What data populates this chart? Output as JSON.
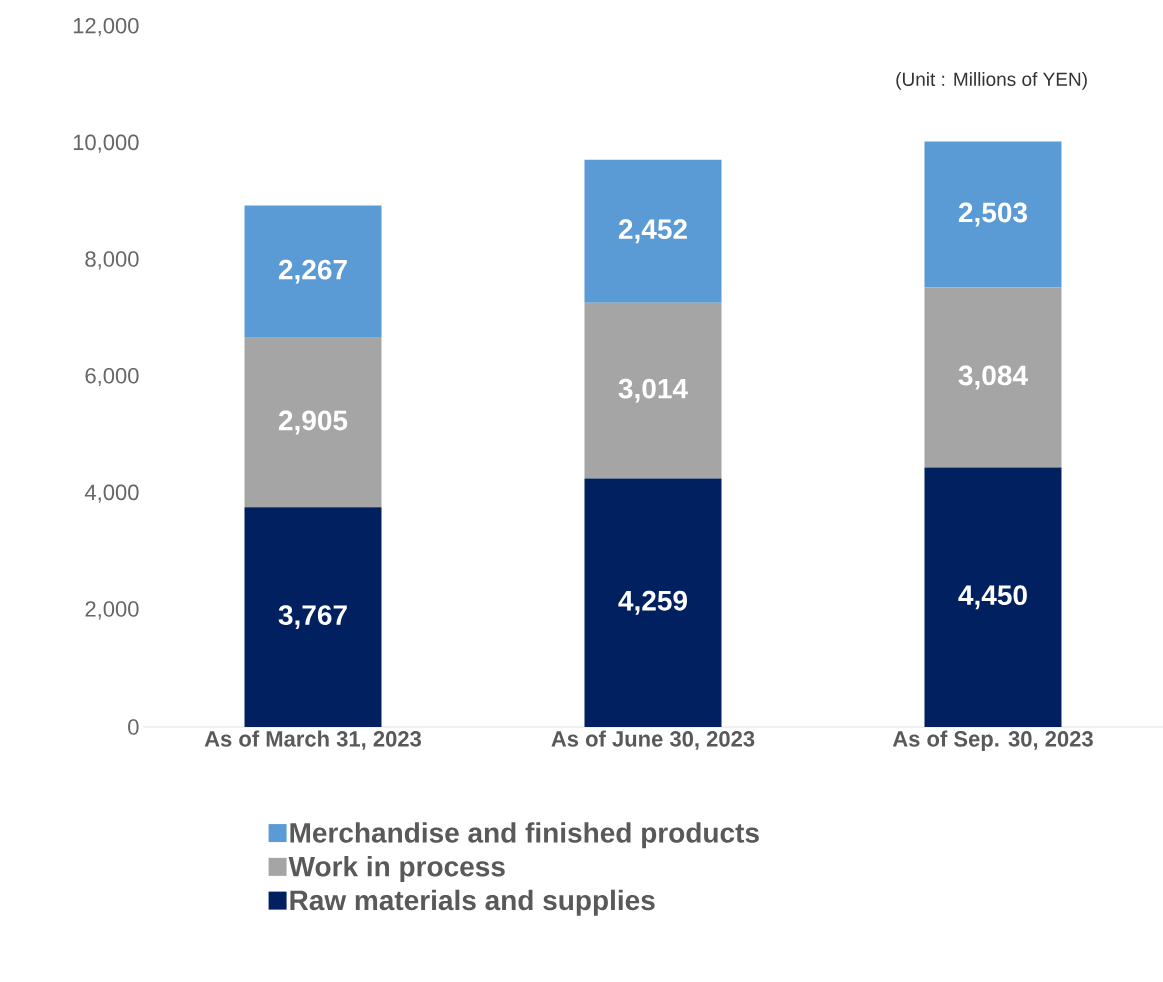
{
  "chart_data": {
    "type": "bar",
    "stacked": true,
    "categories": [
      "As of March 31, 2023",
      "As of June 30, 2023",
      "As of Sep. 30, 2023"
    ],
    "series": [
      {
        "name": "Raw materials and supplies",
        "color": "#002060",
        "values": [
          3767,
          4259,
          4450
        ],
        "value_labels": [
          "3,767",
          "4,259",
          "4,450"
        ]
      },
      {
        "name": "Work in process",
        "color": "#a5a5a5",
        "values": [
          2905,
          3014,
          3084
        ],
        "value_labels": [
          "2,905",
          "3,014",
          "3,084"
        ]
      },
      {
        "name": "Merchandise and finished products",
        "color": "#5b9bd5",
        "values": [
          2267,
          2452,
          2503
        ],
        "value_labels": [
          "2,267",
          "2,452",
          "2,503"
        ]
      }
    ],
    "ylim": [
      0,
      12000
    ],
    "yticks": [
      {
        "value": 0,
        "label": "0"
      },
      {
        "value": 2000,
        "label": "2,000"
      },
      {
        "value": 4000,
        "label": "4,000"
      },
      {
        "value": 6000,
        "label": "6,000"
      },
      {
        "value": 8000,
        "label": "8,000"
      },
      {
        "value": 10000,
        "label": "10,000"
      },
      {
        "value": 12000,
        "label": "12,000"
      }
    ],
    "annotations": [
      "(Unit : Millions of YEN)"
    ],
    "legend": "bottom"
  }
}
